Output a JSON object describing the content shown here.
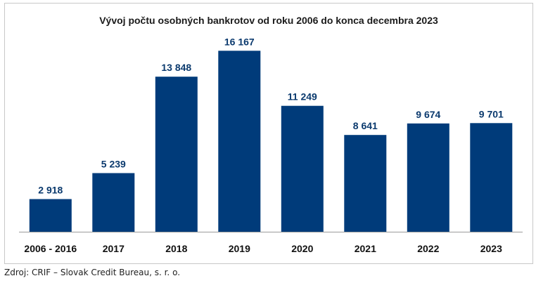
{
  "chart_data": {
    "type": "bar",
    "title": "Vývoj počtu osobných bankrotov od roku 2006 do konca decembra 2023",
    "categories": [
      "2006 - 2016",
      "2017",
      "2018",
      "2019",
      "2020",
      "2021",
      "2022",
      "2023"
    ],
    "values": [
      2918,
      5239,
      13848,
      16167,
      11249,
      8641,
      9674,
      9701
    ],
    "value_labels": [
      "2 918",
      "5 239",
      "13 848",
      "16 167",
      "11 249",
      "8 641",
      "9 674",
      "9 701"
    ],
    "xlabel": "",
    "ylabel": "",
    "ylim": [
      0,
      17500
    ],
    "grid": false,
    "legend": "none",
    "bar_color": "#003b7a",
    "label_color": "#0b3a6e"
  },
  "source": "Zdroj: CRIF – Slovak Credit Bureau, s. r. o."
}
